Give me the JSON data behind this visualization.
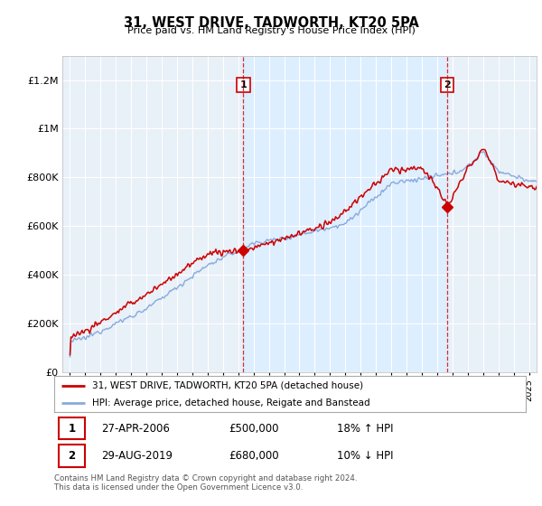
{
  "title": "31, WEST DRIVE, TADWORTH, KT20 5PA",
  "subtitle": "Price paid vs. HM Land Registry's House Price Index (HPI)",
  "ylim": [
    0,
    1300000
  ],
  "yticks": [
    0,
    200000,
    400000,
    600000,
    800000,
    1000000,
    1200000
  ],
  "legend_line1": "31, WEST DRIVE, TADWORTH, KT20 5PA (detached house)",
  "legend_line2": "HPI: Average price, detached house, Reigate and Banstead",
  "marker1_date": "27-APR-2006",
  "marker1_price": "£500,000",
  "marker1_hpi": "18% ↑ HPI",
  "marker2_date": "29-AUG-2019",
  "marker2_price": "£680,000",
  "marker2_hpi": "10% ↓ HPI",
  "footer": "Contains HM Land Registry data © Crown copyright and database right 2024.\nThis data is licensed under the Open Government Licence v3.0.",
  "red_color": "#cc0000",
  "blue_color": "#88aadd",
  "highlight_color": "#ddeeff",
  "bg_color": "#e8f0f8",
  "plot_bg_color": "#ffffff",
  "marker1_x": 2006.33,
  "marker1_y": 500000,
  "marker2_x": 2019.67,
  "marker2_y": 680000,
  "xmin": 1994.5,
  "xmax": 2025.5,
  "noise_scale_hpi": 6000,
  "noise_scale_prop": 9000
}
